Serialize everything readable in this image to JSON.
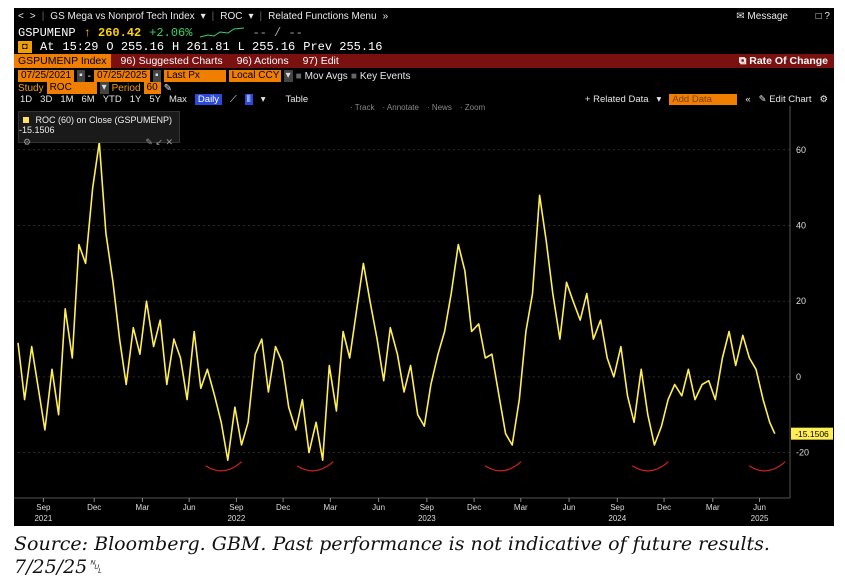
{
  "nav": {
    "back": "<",
    "forward": ">",
    "security_title": "GS Mega vs Nonprof Tech Index",
    "study_label": "ROC",
    "related_menu": "Related Functions Menu",
    "message": "Message",
    "window_icons": "□ ? "
  },
  "ticker": {
    "symbol": "GSPUMENP",
    "last": "↑ 260.42",
    "change": "+2.06%",
    "dashes": "-- / --",
    "at_label": "At",
    "time": "15:29",
    "open": "O 255.16",
    "high": "H 261.81",
    "low": "L 255.16",
    "prev": "Prev 255.16"
  },
  "toolbar": {
    "index_label": "GSPUMENP Index",
    "suggested": "96) Suggested Charts",
    "actions": "96) Actions",
    "edit": "97) Edit",
    "rate_of_change": "Rate Of Change"
  },
  "options": {
    "start_date": "07/25/2021",
    "end_date": "07/25/2025",
    "last_px": "Last Px",
    "currency": "Local CCY",
    "mov_avgs": "Mov Avgs",
    "key_events": "Key Events",
    "study_label": "Study",
    "study_value": "ROC",
    "period_label": "Period",
    "period_value": "60"
  },
  "tools": {
    "periods": [
      "1D",
      "3D",
      "1M",
      "6M",
      "YTD",
      "1Y",
      "5Y",
      "Max"
    ],
    "daily": "Daily",
    "table": "Table",
    "related_data": "+ Related Data",
    "add_data": "Add Data",
    "edit_chart": "Edit Chart"
  },
  "annotate": [
    "Track",
    "Annotate",
    "News",
    "Zoom"
  ],
  "legend": {
    "text": "ROC (60) on Close (GSPUMENP) -15.1506"
  },
  "source": "Source: Bloomberg. GBM. Past performance is not indicative of future results. 7/25/25␀",
  "colors": {
    "background": "#000000",
    "series": "#ffee55",
    "grid": "#444444",
    "annotation": "#cc2222",
    "label_bg": "#ffee55"
  },
  "chart_data": {
    "type": "line",
    "title": "ROC (60) on Close (GSPUMENP)",
    "ylabel": "",
    "xlabel": "",
    "ylim": [
      -32,
      70
    ],
    "y_ticks": [
      60,
      40,
      20,
      0,
      -20
    ],
    "last_value_label": "-15.1506",
    "x_ticks": [
      {
        "label": "Sep",
        "sub": "2021",
        "t": 0.05
      },
      {
        "label": "Dec",
        "sub": "",
        "t": 0.15
      },
      {
        "label": "Mar",
        "sub": "",
        "t": 0.245
      },
      {
        "label": "Jun",
        "sub": "",
        "t": 0.337
      },
      {
        "label": "Sep",
        "sub": "2022",
        "t": 0.43
      },
      {
        "label": "Dec",
        "sub": "",
        "t": 0.522
      },
      {
        "label": "Mar",
        "sub": "",
        "t": 0.615
      },
      {
        "label": "Jun",
        "sub": "",
        "t": 0.71
      },
      {
        "label": "Sep",
        "sub": "2023",
        "t": 0.805
      },
      {
        "label": "Dec",
        "sub": "",
        "t": 0.898
      },
      {
        "label": "Mar",
        "sub": "",
        "t": 0.99
      },
      {
        "label": "Jun",
        "sub": "",
        "t": 1.085
      },
      {
        "label": "Sep",
        "sub": "2024",
        "t": 1.18
      },
      {
        "label": "Dec",
        "sub": "",
        "t": 1.272
      },
      {
        "label": "Mar",
        "sub": "",
        "t": 1.368
      },
      {
        "label": "Jun",
        "sub": "2025",
        "t": 1.46
      }
    ],
    "series": [
      {
        "name": "ROC (60) on Close (GSPUMENP)",
        "t": [
          0,
          0.013,
          0.027,
          0.04,
          0.053,
          0.067,
          0.08,
          0.093,
          0.107,
          0.12,
          0.133,
          0.147,
          0.16,
          0.173,
          0.187,
          0.2,
          0.213,
          0.227,
          0.24,
          0.253,
          0.267,
          0.28,
          0.293,
          0.307,
          0.32,
          0.333,
          0.347,
          0.36,
          0.373,
          0.387,
          0.4,
          0.413,
          0.427,
          0.44,
          0.453,
          0.467,
          0.48,
          0.493,
          0.507,
          0.52,
          0.533,
          0.547,
          0.56,
          0.573,
          0.587,
          0.6,
          0.613,
          0.627,
          0.64,
          0.653,
          0.667,
          0.68,
          0.693,
          0.707,
          0.72,
          0.733,
          0.747,
          0.76,
          0.773,
          0.787,
          0.8,
          0.813,
          0.827,
          0.84,
          0.853,
          0.867,
          0.88,
          0.893,
          0.907,
          0.92,
          0.933,
          0.947,
          0.96,
          0.973,
          0.987,
          1.0,
          1.013,
          1.027,
          1.04,
          1.053,
          1.067,
          1.08,
          1.093,
          1.107,
          1.12,
          1.133,
          1.147,
          1.16,
          1.173,
          1.187,
          1.2,
          1.213,
          1.227,
          1.24,
          1.253,
          1.267,
          1.28,
          1.293,
          1.307,
          1.32,
          1.333,
          1.347,
          1.36,
          1.373,
          1.387,
          1.4,
          1.413,
          1.427,
          1.44,
          1.453,
          1.467,
          1.48,
          1.49
        ],
        "values": [
          9,
          -6,
          8,
          -3,
          -14,
          2,
          -10,
          18,
          5,
          35,
          30,
          50,
          62,
          38,
          25,
          10,
          -2,
          13,
          6,
          20,
          8,
          15,
          -2,
          10,
          5,
          -6,
          12,
          -3,
          2,
          -5,
          -12,
          -22,
          -8,
          -18,
          -12,
          6,
          10,
          -4,
          8,
          4,
          -8,
          -14,
          -6,
          -20,
          -12,
          -22,
          3,
          -9,
          12,
          5,
          18,
          30,
          20,
          10,
          -1,
          13,
          6,
          -4,
          3,
          -10,
          -13,
          -2,
          6,
          12,
          22,
          35,
          28,
          12,
          14,
          5,
          6,
          -5,
          -15,
          -18,
          -6,
          12,
          22,
          48,
          36,
          22,
          10,
          25,
          20,
          15,
          22,
          10,
          15,
          5,
          0,
          8,
          -5,
          -12,
          2,
          -10,
          -18,
          -13,
          -6,
          -2,
          -5,
          2,
          -6,
          -2,
          -1,
          -6,
          5,
          12,
          3,
          11,
          5,
          2,
          -6,
          -12,
          -15
        ]
      }
    ]
  }
}
